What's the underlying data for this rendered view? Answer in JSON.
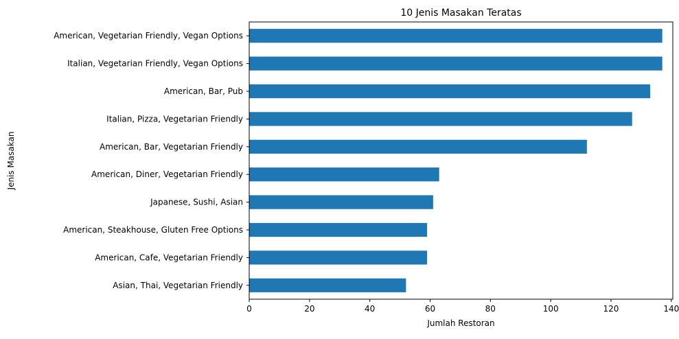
{
  "chart_data": {
    "type": "bar",
    "orientation": "horizontal",
    "title": "10 Jenis Masakan Teratas",
    "xlabel": "Jumlah Restoran",
    "ylabel": "Jenis Masakan",
    "xlim": [
      0,
      140.5
    ],
    "xticks": [
      0,
      20,
      40,
      60,
      80,
      100,
      120,
      140
    ],
    "grid": false,
    "bar_color": "#1f77b4",
    "categories": [
      "American, Vegetarian Friendly, Vegan Options",
      "Italian, Vegetarian Friendly, Vegan Options",
      "American, Bar, Pub",
      "Italian, Pizza, Vegetarian Friendly",
      "American, Bar, Vegetarian Friendly",
      "American, Diner, Vegetarian Friendly",
      "Japanese, Sushi, Asian",
      "American, Steakhouse, Gluten Free Options",
      "American, Cafe, Vegetarian Friendly",
      "Asian, Thai, Vegetarian Friendly"
    ],
    "values": [
      137,
      137,
      133,
      127,
      112,
      63,
      61,
      59,
      59,
      52
    ]
  }
}
